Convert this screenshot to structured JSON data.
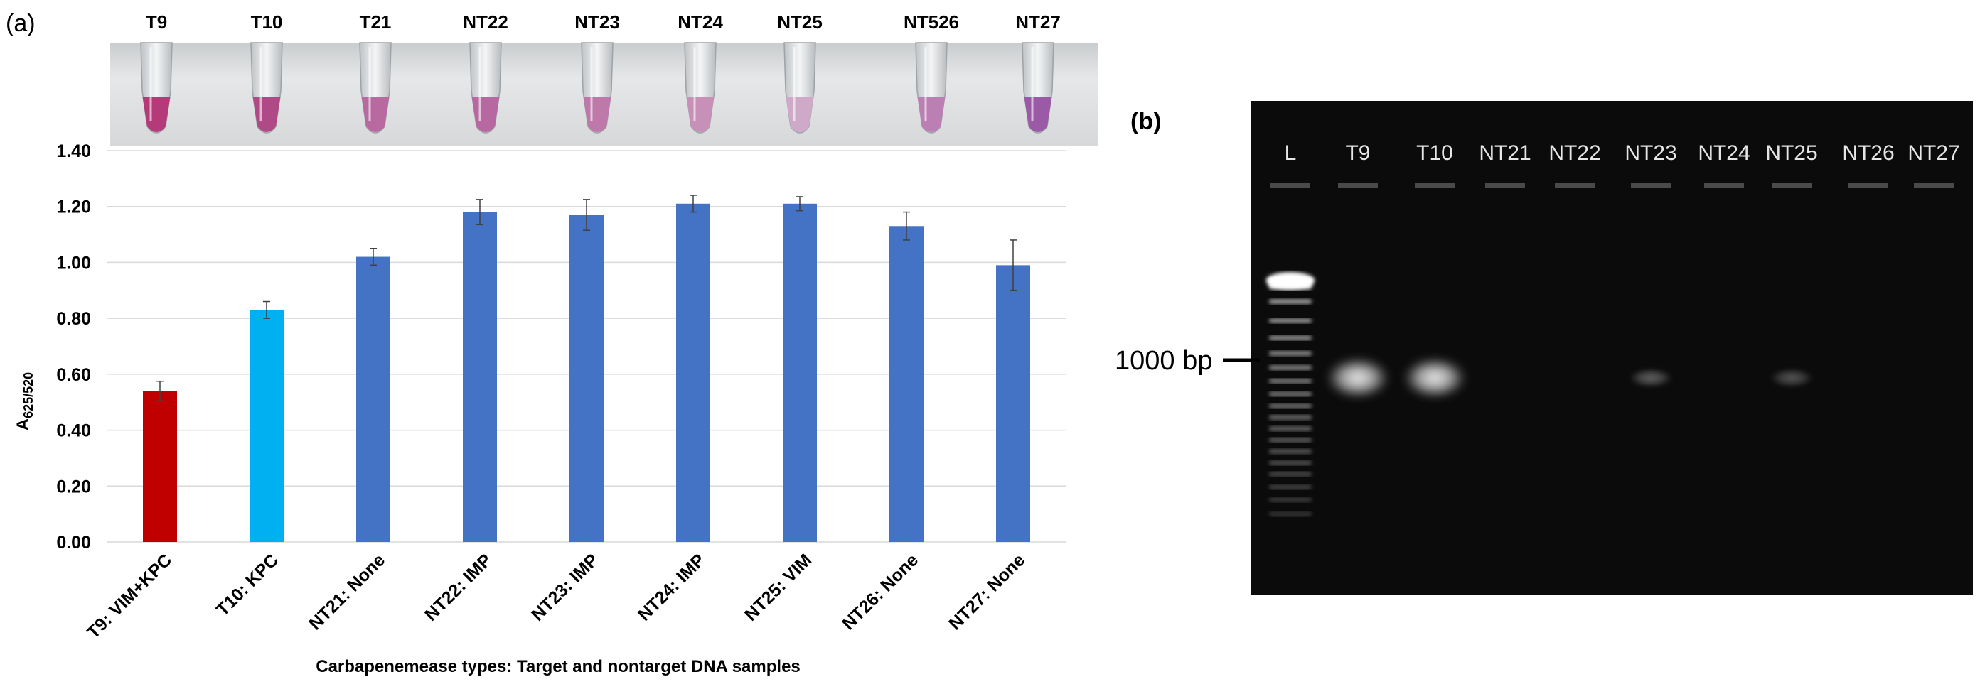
{
  "panel_a": {
    "label": "(a)",
    "tube_labels": [
      "T9",
      "T10",
      "T21",
      "NT22",
      "NT23",
      "NT24",
      "NT25",
      "NT526",
      "NT27"
    ],
    "tube_colors": [
      "#b43a7a",
      "#b04a86",
      "#b86aa0",
      "#b868a0",
      "#be78aa",
      "#c690b8",
      "#cfaac8",
      "#bb7fb3",
      "#9a5aa6"
    ]
  },
  "panel_b": {
    "label": "(b)",
    "lane_labels": [
      "L",
      "T9",
      "T10",
      "NT21",
      "NT22",
      "NT23",
      "NT24",
      "NT25",
      "NT26",
      "NT27"
    ],
    "marker_label": "1000 bp",
    "band_intensity": [
      1.0,
      0.95,
      0.95,
      0,
      0,
      0.35,
      0,
      0.3,
      0,
      0
    ]
  },
  "chart_data": {
    "type": "bar",
    "title": "",
    "xlabel": "Carbapenemease types: Target and nontarget DNA samples",
    "ylabel_main": "A",
    "ylabel_sub": "625/520",
    "ylim": [
      0,
      1.4
    ],
    "yticks": [
      "0.00",
      "0.20",
      "0.40",
      "0.60",
      "0.80",
      "1.00",
      "1.20",
      "1.40"
    ],
    "categories": [
      "T9: VIM+KPC",
      "T10: KPC",
      "NT21: None",
      "NT22: IMP",
      "NT23: IMP",
      "NT24: IMP",
      "NT25: VIM",
      "NT26: None",
      "NT27: None"
    ],
    "values": [
      0.54,
      0.83,
      1.02,
      1.18,
      1.17,
      1.21,
      1.21,
      1.13,
      0.99
    ],
    "errors": [
      0.035,
      0.03,
      0.03,
      0.045,
      0.055,
      0.03,
      0.025,
      0.05,
      0.09
    ],
    "bar_colors": [
      "#c00000",
      "#00b0f0",
      "#4472c4",
      "#4472c4",
      "#4472c4",
      "#4472c4",
      "#4472c4",
      "#4472c4",
      "#4472c4"
    ],
    "grid": true
  }
}
